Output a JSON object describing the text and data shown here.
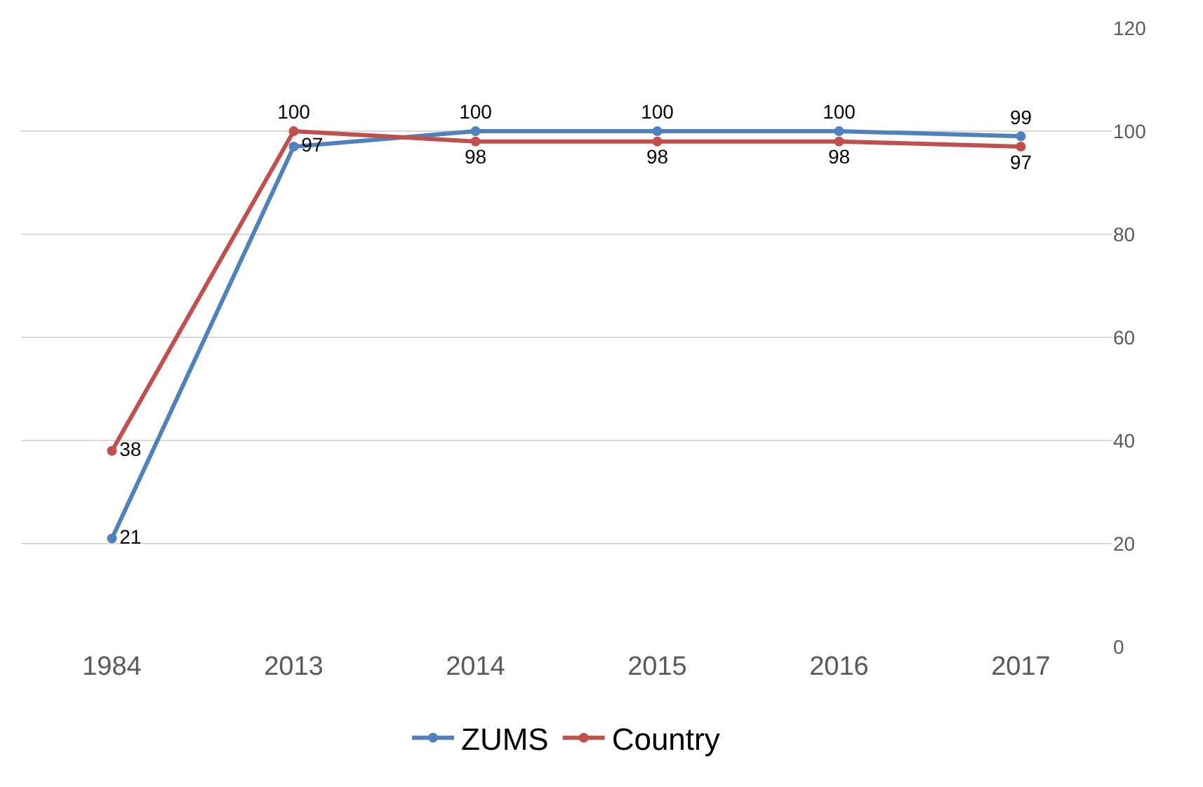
{
  "chart_data": {
    "type": "line",
    "categories": [
      "1984",
      "2013",
      "2014",
      "2015",
      "2016",
      "2017"
    ],
    "series": [
      {
        "name": "ZUMS",
        "color": "#4f81bd",
        "values": [
          21,
          97,
          100,
          100,
          100,
          99
        ]
      },
      {
        "name": "Country",
        "color": "#c0504d",
        "values": [
          38,
          100,
          98,
          98,
          98,
          97
        ]
      }
    ],
    "ylim": [
      0,
      120
    ],
    "yticks": [
      0,
      20,
      40,
      60,
      80,
      100,
      120
    ],
    "grid": "y",
    "legend": "bottom",
    "marker": "circle",
    "line_style": "solid",
    "data_labels": true
  }
}
